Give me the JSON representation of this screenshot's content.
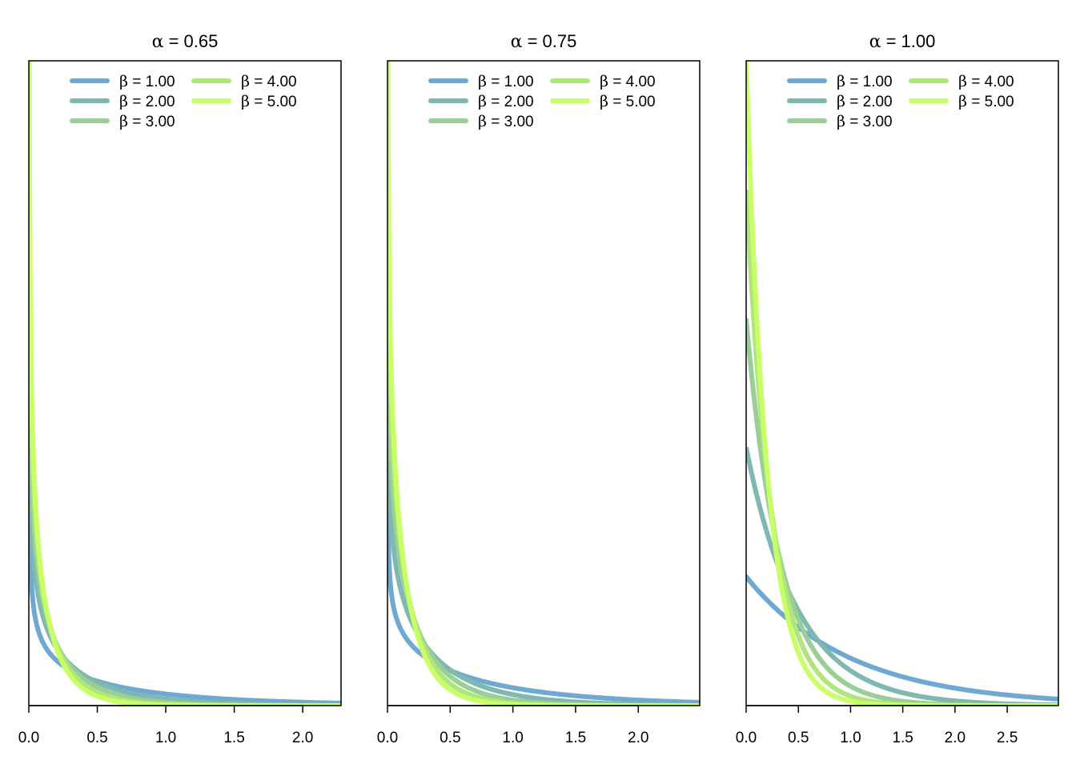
{
  "chart_data": [
    {
      "type": "line",
      "title_symbol": "α",
      "title_value": "0.65",
      "xlabel": "",
      "ylabel": "",
      "xlim": [
        0,
        2.28
      ],
      "xticks": [
        "0.0",
        "0.5",
        "1.0",
        "1.5",
        "2.0"
      ],
      "xtick_values": [
        0,
        0.5,
        1.0,
        1.5,
        2.0
      ],
      "yticks_shown": false,
      "alpha": 0.65,
      "legend_position": "top",
      "series": [
        {
          "name": "1.00",
          "beta": 1.0,
          "color": "#6fa8d0"
        },
        {
          "name": "2.00",
          "beta": 2.0,
          "color": "#7fb8b0"
        },
        {
          "name": "3.00",
          "beta": 3.0,
          "color": "#99cf96"
        },
        {
          "name": "4.00",
          "beta": 4.0,
          "color": "#b0e57c"
        },
        {
          "name": "5.00",
          "beta": 5.0,
          "color": "#c8ff66"
        }
      ]
    },
    {
      "type": "line",
      "title_symbol": "α",
      "title_value": "0.75",
      "xlabel": "",
      "ylabel": "",
      "xlim": [
        0,
        2.49
      ],
      "xticks": [
        "0.0",
        "0.5",
        "1.0",
        "1.5",
        "2.0"
      ],
      "xtick_values": [
        0,
        0.5,
        1.0,
        1.5,
        2.0
      ],
      "yticks_shown": false,
      "alpha": 0.75,
      "legend_position": "top",
      "series": [
        {
          "name": "1.00",
          "beta": 1.0,
          "color": "#6fa8d0"
        },
        {
          "name": "2.00",
          "beta": 2.0,
          "color": "#7fb8b0"
        },
        {
          "name": "3.00",
          "beta": 3.0,
          "color": "#99cf96"
        },
        {
          "name": "4.00",
          "beta": 4.0,
          "color": "#b0e57c"
        },
        {
          "name": "5.00",
          "beta": 5.0,
          "color": "#c8ff66"
        }
      ]
    },
    {
      "type": "line",
      "title_symbol": "α",
      "title_value": "1.00",
      "xlabel": "",
      "ylabel": "",
      "xlim": [
        0,
        2.99
      ],
      "xticks": [
        "0.0",
        "0.5",
        "1.0",
        "1.5",
        "2.0",
        "2.5"
      ],
      "xtick_values": [
        0,
        0.5,
        1.0,
        1.5,
        2.0,
        2.5
      ],
      "yticks_shown": false,
      "alpha": 1.0,
      "legend_position": "top",
      "series": [
        {
          "name": "1.00",
          "beta": 1.0,
          "color": "#6fa8d0"
        },
        {
          "name": "2.00",
          "beta": 2.0,
          "color": "#7fb8b0"
        },
        {
          "name": "3.00",
          "beta": 3.0,
          "color": "#99cf96"
        },
        {
          "name": "4.00",
          "beta": 4.0,
          "color": "#b0e57c"
        },
        {
          "name": "5.00",
          "beta": 5.0,
          "color": "#c8ff66"
        }
      ]
    }
  ],
  "legend_symbol": "β"
}
